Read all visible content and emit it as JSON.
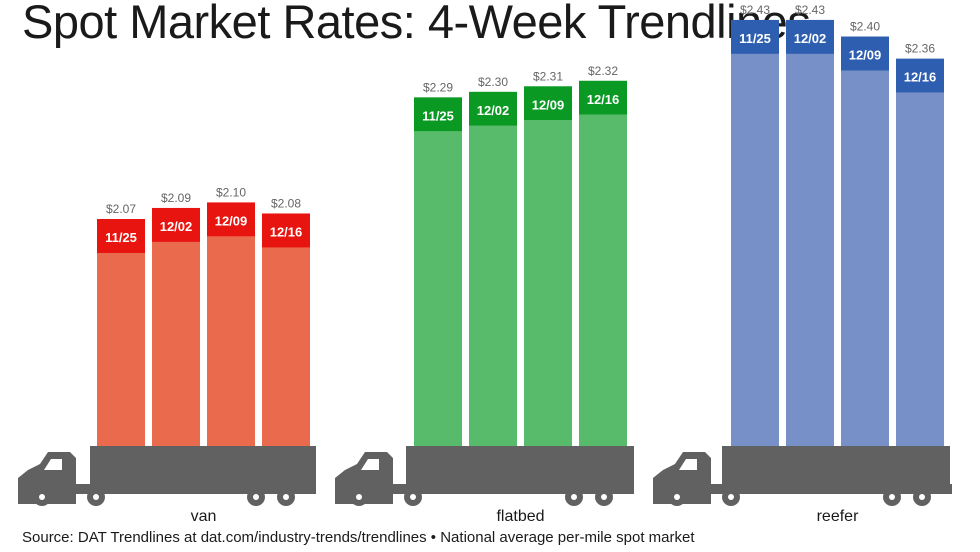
{
  "title": "Spot Market Rates: 4-Week Trendlines",
  "source": "Source: DAT Trendlines at dat.com/industry-trends/trendlines • National average per-mile spot market",
  "chart_data": {
    "type": "bar",
    "title": "Spot Market Rates: 4-Week Trendlines",
    "xlabel": "",
    "ylabel": "",
    "categories": [
      "11/25",
      "12/02",
      "12/09",
      "12/16"
    ],
    "series": [
      {
        "name": "van",
        "values": [
          2.07,
          2.09,
          2.1,
          2.08
        ],
        "value_labels": [
          "$2.07",
          "$2.09",
          "$2.10",
          "$2.08"
        ],
        "color": "#ea6a4e",
        "label_color": "#e8140f"
      },
      {
        "name": "flatbed",
        "values": [
          2.29,
          2.3,
          2.31,
          2.32
        ],
        "value_labels": [
          "$2.29",
          "$2.30",
          "$2.31",
          "$2.32"
        ],
        "color": "#58bb6c",
        "label_color": "#0a9a24"
      },
      {
        "name": "reefer",
        "values": [
          2.43,
          2.43,
          2.4,
          2.36
        ],
        "value_labels": [
          "$2.43",
          "$2.43",
          "$2.40",
          "$2.36"
        ],
        "color": "#7790c7",
        "label_color": "#2e5eb0"
      }
    ],
    "truck_color": "#616161",
    "grid": false,
    "legend": "none"
  }
}
